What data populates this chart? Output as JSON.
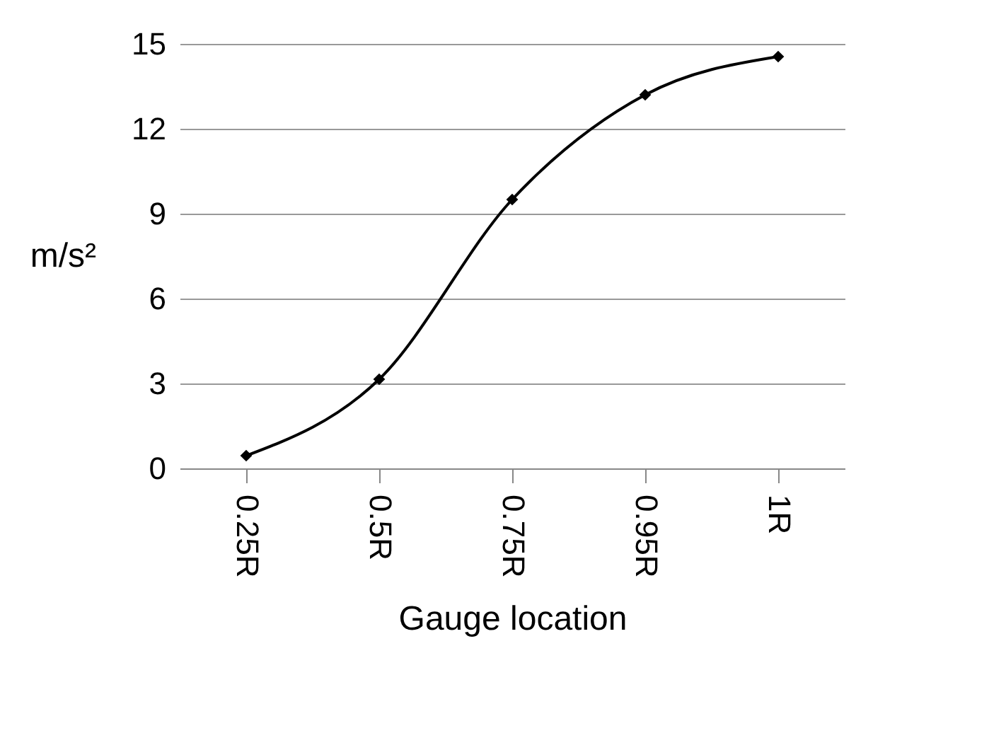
{
  "chart_data": {
    "type": "line",
    "xlabel": "Gauge location",
    "ylabel": "m/s²",
    "categories": [
      "0.25R",
      "0.5R",
      "0.75R",
      "0.95R",
      "1R"
    ],
    "series": [
      {
        "color": "#000000",
        "values": [
          0.45,
          3.15,
          9.5,
          13.2,
          14.55
        ]
      }
    ],
    "ylim": [
      0,
      15
    ],
    "yticks": [
      0,
      3,
      6,
      9,
      12,
      15
    ],
    "grid": "y",
    "marker": "diamond",
    "line_style": "solid",
    "legend": false
  }
}
